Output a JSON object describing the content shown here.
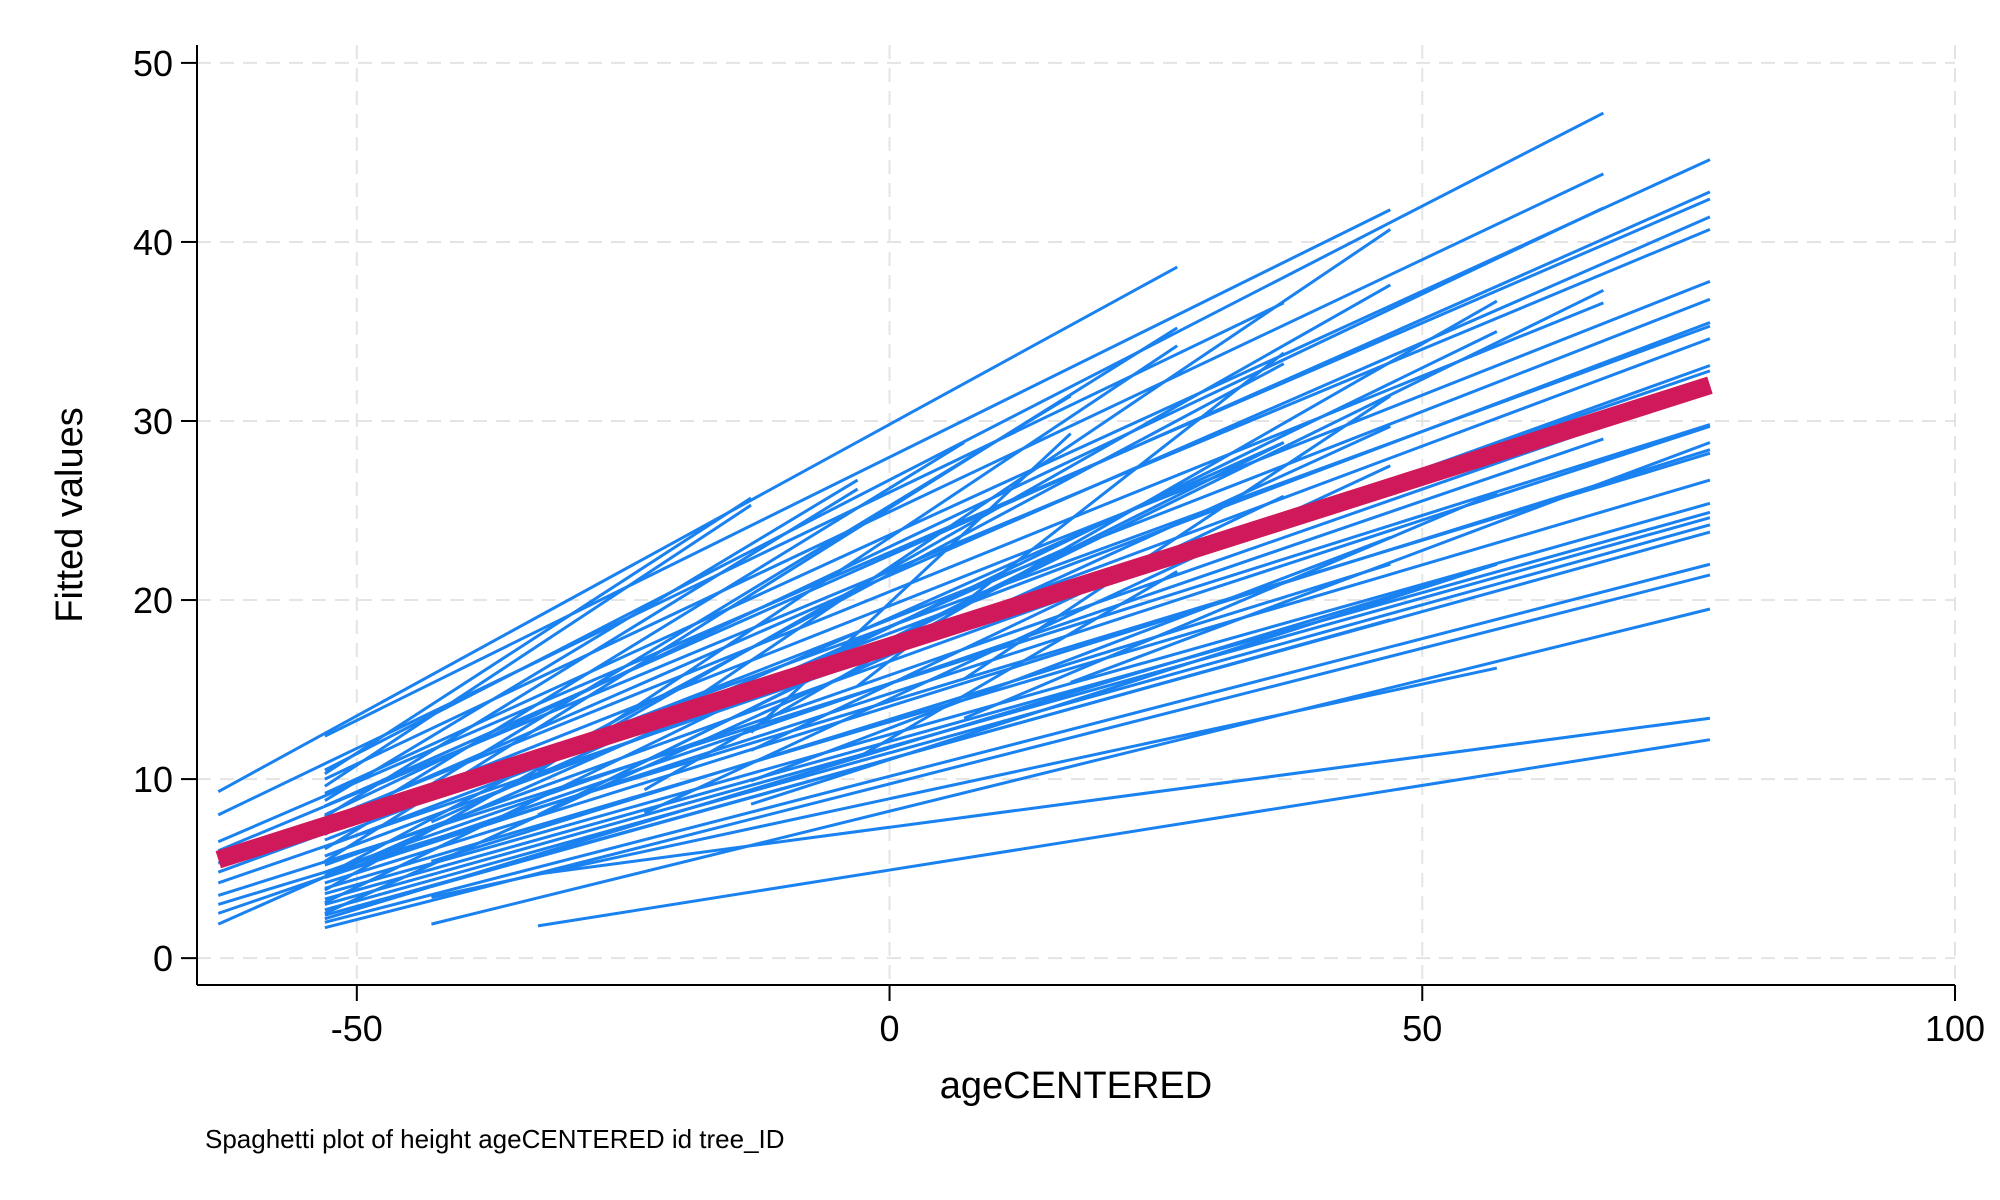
{
  "chart_data": {
    "type": "line",
    "note": "Spaghetti plot of height ageCENTERED id tree_ID",
    "xlabel": "ageCENTERED",
    "ylabel": "Fitted values",
    "xlim": [
      -65,
      100
    ],
    "ylim": [
      -1.5,
      51
    ],
    "xticks": [
      -50,
      0,
      50,
      100
    ],
    "yticks": [
      0,
      10,
      20,
      30,
      40,
      50
    ],
    "grid": true,
    "legend": "none",
    "colors": {
      "individual": "#1a82f0",
      "mean": "#d0195a"
    },
    "individual_series": [
      [
        -63,
        9.3,
        27,
        38.6
      ],
      [
        -63,
        8.0,
        37,
        36.6
      ],
      [
        -63,
        6.5,
        77,
        42.4
      ],
      [
        -63,
        6.0,
        77,
        40.7
      ],
      [
        -63,
        5.3,
        67,
        36.6
      ],
      [
        -63,
        4.8,
        77,
        35.3
      ],
      [
        -63,
        4.2,
        77,
        32.8
      ],
      [
        -63,
        3.5,
        77,
        29.8
      ],
      [
        -63,
        3.0,
        77,
        28.2
      ],
      [
        -63,
        2.5,
        67,
        29.0
      ],
      [
        -63,
        1.9,
        17,
        23.0
      ],
      [
        -53,
        12.4,
        47,
        41.8
      ],
      [
        -53,
        10.5,
        67,
        47.2
      ],
      [
        -53,
        10.0,
        67,
        43.8
      ],
      [
        -53,
        9.2,
        77,
        44.6
      ],
      [
        -53,
        8.5,
        77,
        42.8
      ],
      [
        -53,
        8.0,
        67,
        41.9
      ],
      [
        -53,
        7.6,
        77,
        41.4
      ],
      [
        -53,
        7.2,
        77,
        37.8
      ],
      [
        -53,
        6.6,
        77,
        36.8
      ],
      [
        -53,
        6.2,
        77,
        35.5
      ],
      [
        -53,
        5.7,
        77,
        34.6
      ],
      [
        -53,
        5.2,
        77,
        33.1
      ],
      [
        -53,
        4.8,
        77,
        31.8
      ],
      [
        -53,
        4.5,
        77,
        29.7
      ],
      [
        -53,
        4.2,
        77,
        28.4
      ],
      [
        -53,
        3.9,
        77,
        26.7
      ],
      [
        -53,
        3.6,
        77,
        25.4
      ],
      [
        -53,
        3.3,
        77,
        24.9
      ],
      [
        -53,
        3.0,
        77,
        24.6
      ],
      [
        -53,
        2.7,
        77,
        24.2
      ],
      [
        -53,
        2.4,
        77,
        23.8
      ],
      [
        -53,
        2.0,
        77,
        22.0
      ],
      [
        -53,
        1.7,
        77,
        21.4
      ],
      [
        -53,
        10.3,
        -13,
        25.7
      ],
      [
        -53,
        9.6,
        -13,
        25.3
      ],
      [
        -53,
        8.8,
        -3,
        26.7
      ],
      [
        -53,
        7.9,
        -3,
        26.2
      ],
      [
        -53,
        6.9,
        7,
        28.8
      ],
      [
        -53,
        6.1,
        17,
        31.4
      ],
      [
        -53,
        5.4,
        27,
        35.2
      ],
      [
        -53,
        4.6,
        37,
        33.2
      ],
      [
        -53,
        3.8,
        47,
        37.6
      ],
      [
        -53,
        3.1,
        57,
        35.0
      ],
      [
        -53,
        2.5,
        47,
        29.7
      ],
      [
        -53,
        2.2,
        57,
        22.0
      ],
      [
        -43,
        7.6,
        37,
        28.8
      ],
      [
        -43,
        5.4,
        47,
        22.0
      ],
      [
        -43,
        4.0,
        47,
        18.9
      ],
      [
        -43,
        3.4,
        57,
        16.2
      ],
      [
        -43,
        1.9,
        77,
        19.5
      ],
      [
        -33,
        4.7,
        77,
        13.4
      ],
      [
        -33,
        1.8,
        77,
        12.2
      ],
      [
        -33,
        10.4,
        27,
        34.2
      ],
      [
        -33,
        8.0,
        37,
        28.8
      ],
      [
        -23,
        12.6,
        47,
        40.7
      ],
      [
        -23,
        11.0,
        67,
        37.3
      ],
      [
        -23,
        9.4,
        57,
        36.7
      ],
      [
        -23,
        8.1,
        47,
        27.5
      ],
      [
        -13,
        11.6,
        37,
        25.8
      ],
      [
        -13,
        9.9,
        47,
        23.5
      ],
      [
        -13,
        8.6,
        57,
        22.0
      ],
      [
        -13,
        12.6,
        17,
        29.3
      ],
      [
        -3,
        11.2,
        27,
        21.6
      ],
      [
        -3,
        15.2,
        37,
        33.8
      ],
      [
        7,
        13.4,
        57,
        26.0
      ],
      [
        7,
        15.6,
        47,
        31.4
      ],
      [
        17,
        15.4,
        77,
        28.8
      ]
    ],
    "mean_series": {
      "x": [
        -63,
        77
      ],
      "y": [
        5.5,
        32.0
      ]
    }
  }
}
